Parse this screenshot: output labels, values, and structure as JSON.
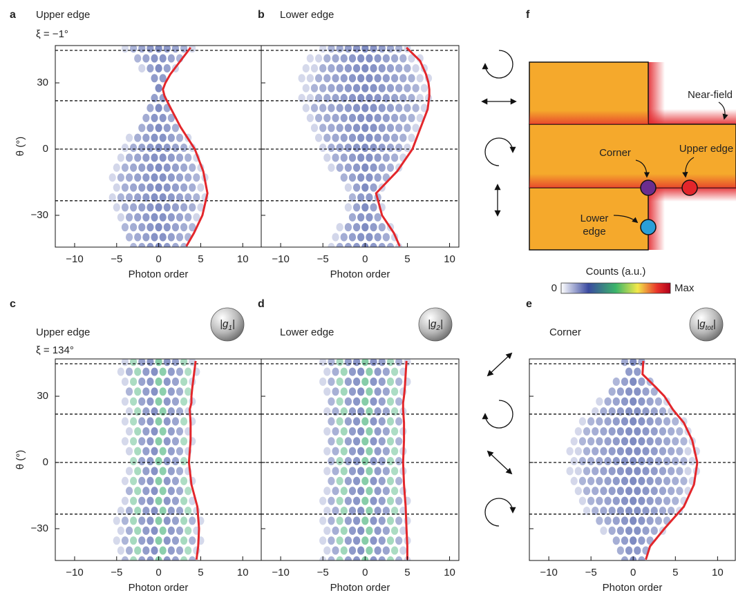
{
  "chart_data": [
    {
      "type": "line",
      "panel": "a",
      "title": "Upper edge",
      "subtitle": "ξ = −1°",
      "title_color": "#e3262b",
      "xlabel": "Photon order",
      "ylabel": "θ (°)",
      "xlim": [
        -12.3,
        12.2
      ],
      "ylim": [
        -44.4,
        46.9
      ],
      "xticks": [
        {
          "value": -10,
          "label": "−10"
        },
        {
          "value": -5,
          "label": "−5"
        },
        0,
        5,
        10
      ],
      "yticks": [
        {
          "value": -30,
          "label": "−30"
        },
        0,
        30
      ],
      "show_yticklabels": true,
      "hlines": [
        44.7,
        21.9,
        0,
        -23.4
      ],
      "series": [
        {
          "color": "#e3262b",
          "y": [
            46,
            40,
            34,
            30,
            27,
            24,
            18,
            10,
            0,
            -10,
            -20,
            -30,
            -38,
            -44
          ],
          "x": [
            3.8,
            2.6,
            1.4,
            0.8,
            0.5,
            0.7,
            1.5,
            2.6,
            4.3,
            5.3,
            5.8,
            5.2,
            4.2,
            3.3
          ]
        }
      ]
    },
    {
      "type": "line",
      "panel": "b",
      "title": "Lower edge",
      "title_color": "#46559d",
      "xlabel": "Photon order",
      "xlim": [
        -12.3,
        11.1
      ],
      "ylim": [
        -44.4,
        46.9
      ],
      "xticks": [
        {
          "value": -10,
          "label": "−10"
        },
        {
          "value": -5,
          "label": "−5"
        },
        0,
        5,
        10
      ],
      "yticks": [
        -30,
        0,
        30
      ],
      "show_yticklabels": false,
      "hlines": [
        44.7,
        21.9,
        0,
        -23.4
      ],
      "series": [
        {
          "color": "#e3262b",
          "y": [
            46,
            40,
            34,
            30,
            27,
            24,
            18,
            10,
            0,
            -10,
            -20,
            -30,
            -38,
            -44
          ],
          "x": [
            4.9,
            6.5,
            7.2,
            7.5,
            7.6,
            7.6,
            7.4,
            6.6,
            5.6,
            3.8,
            1.3,
            2.0,
            3.4,
            4.1
          ]
        }
      ]
    },
    {
      "type": "line",
      "panel": "c",
      "title": "Upper edge",
      "subtitle": "ξ = 134°",
      "title_color": "#e3262b",
      "badge": {
        "text": "|g",
        "sub": "1",
        "end": "|"
      },
      "xlabel": "Photon order",
      "ylabel": "θ (°)",
      "xlim": [
        -12.3,
        12.2
      ],
      "ylim": [
        -44.4,
        46.9
      ],
      "xticks": [
        {
          "value": -10,
          "label": "−10"
        },
        {
          "value": -5,
          "label": "−5"
        },
        0,
        5,
        10
      ],
      "yticks": [
        {
          "value": -30,
          "label": "−30"
        },
        0,
        30
      ],
      "show_yticklabels": true,
      "hlines": [
        44.7,
        21.9,
        0,
        -23.4
      ],
      "series": [
        {
          "color": "#e3262b",
          "y": [
            46,
            40,
            34,
            30,
            27,
            24,
            18,
            10,
            0,
            -10,
            -20,
            -30,
            -38,
            -44
          ],
          "x": [
            4.4,
            4.2,
            4.0,
            3.9,
            3.9,
            3.7,
            3.8,
            3.8,
            3.6,
            3.9,
            4.6,
            4.8,
            4.7,
            4.5
          ]
        }
      ]
    },
    {
      "type": "line",
      "panel": "d",
      "title": "Lower edge",
      "title_color": "#46559d",
      "badge": {
        "text": "|g",
        "sub": "2",
        "end": "|"
      },
      "xlabel": "Photon order",
      "xlim": [
        -12.3,
        11.1
      ],
      "ylim": [
        -44.4,
        46.9
      ],
      "xticks": [
        {
          "value": -10,
          "label": "−10"
        },
        {
          "value": -5,
          "label": "−5"
        },
        0,
        5,
        10
      ],
      "yticks": [
        -30,
        0,
        30
      ],
      "show_yticklabels": false,
      "hlines": [
        44.7,
        21.9,
        0,
        -23.4
      ],
      "series": [
        {
          "color": "#e3262b",
          "y": [
            46,
            40,
            34,
            30,
            27,
            24,
            18,
            10,
            0,
            -10,
            -20,
            -30,
            -38,
            -44
          ],
          "x": [
            4.9,
            4.8,
            4.7,
            4.6,
            4.5,
            4.5,
            4.6,
            4.6,
            4.5,
            4.6,
            4.8,
            4.9,
            5.0,
            5.0
          ]
        }
      ]
    },
    {
      "type": "line",
      "panel": "e",
      "title": "Corner",
      "title_color": "#7b3f98",
      "badge": {
        "text": "|g",
        "sub": "tot",
        "end": "|"
      },
      "xlabel": "Photon order",
      "xlim": [
        -12.3,
        12.1
      ],
      "ylim": [
        -44.4,
        46.9
      ],
      "xticks": [
        {
          "value": -10,
          "label": "−10"
        },
        {
          "value": -5,
          "label": "−5"
        },
        0,
        5,
        10
      ],
      "yticks": [
        -30,
        0,
        30
      ],
      "show_yticklabels": false,
      "hlines": [
        44.7,
        21.9,
        0,
        -23.4
      ],
      "series": [
        {
          "color": "#e3262b",
          "y": [
            46,
            40,
            34,
            30,
            24,
            18,
            10,
            0,
            -10,
            -20,
            -30,
            -38,
            -44
          ],
          "x": [
            1.2,
            1.1,
            2.7,
            3.7,
            4.7,
            6.0,
            7.0,
            7.6,
            7.2,
            6.0,
            3.7,
            2.0,
            1.5
          ]
        }
      ]
    }
  ],
  "diagram": {
    "letter": "f",
    "near_field": "Near-field",
    "corner": "Corner",
    "upper_edge": "Upper edge",
    "lower_edge": [
      "Lower",
      "edge"
    ]
  },
  "colorbar": {
    "label": "Counts (a.u.)",
    "min": "0",
    "max": "Max"
  }
}
